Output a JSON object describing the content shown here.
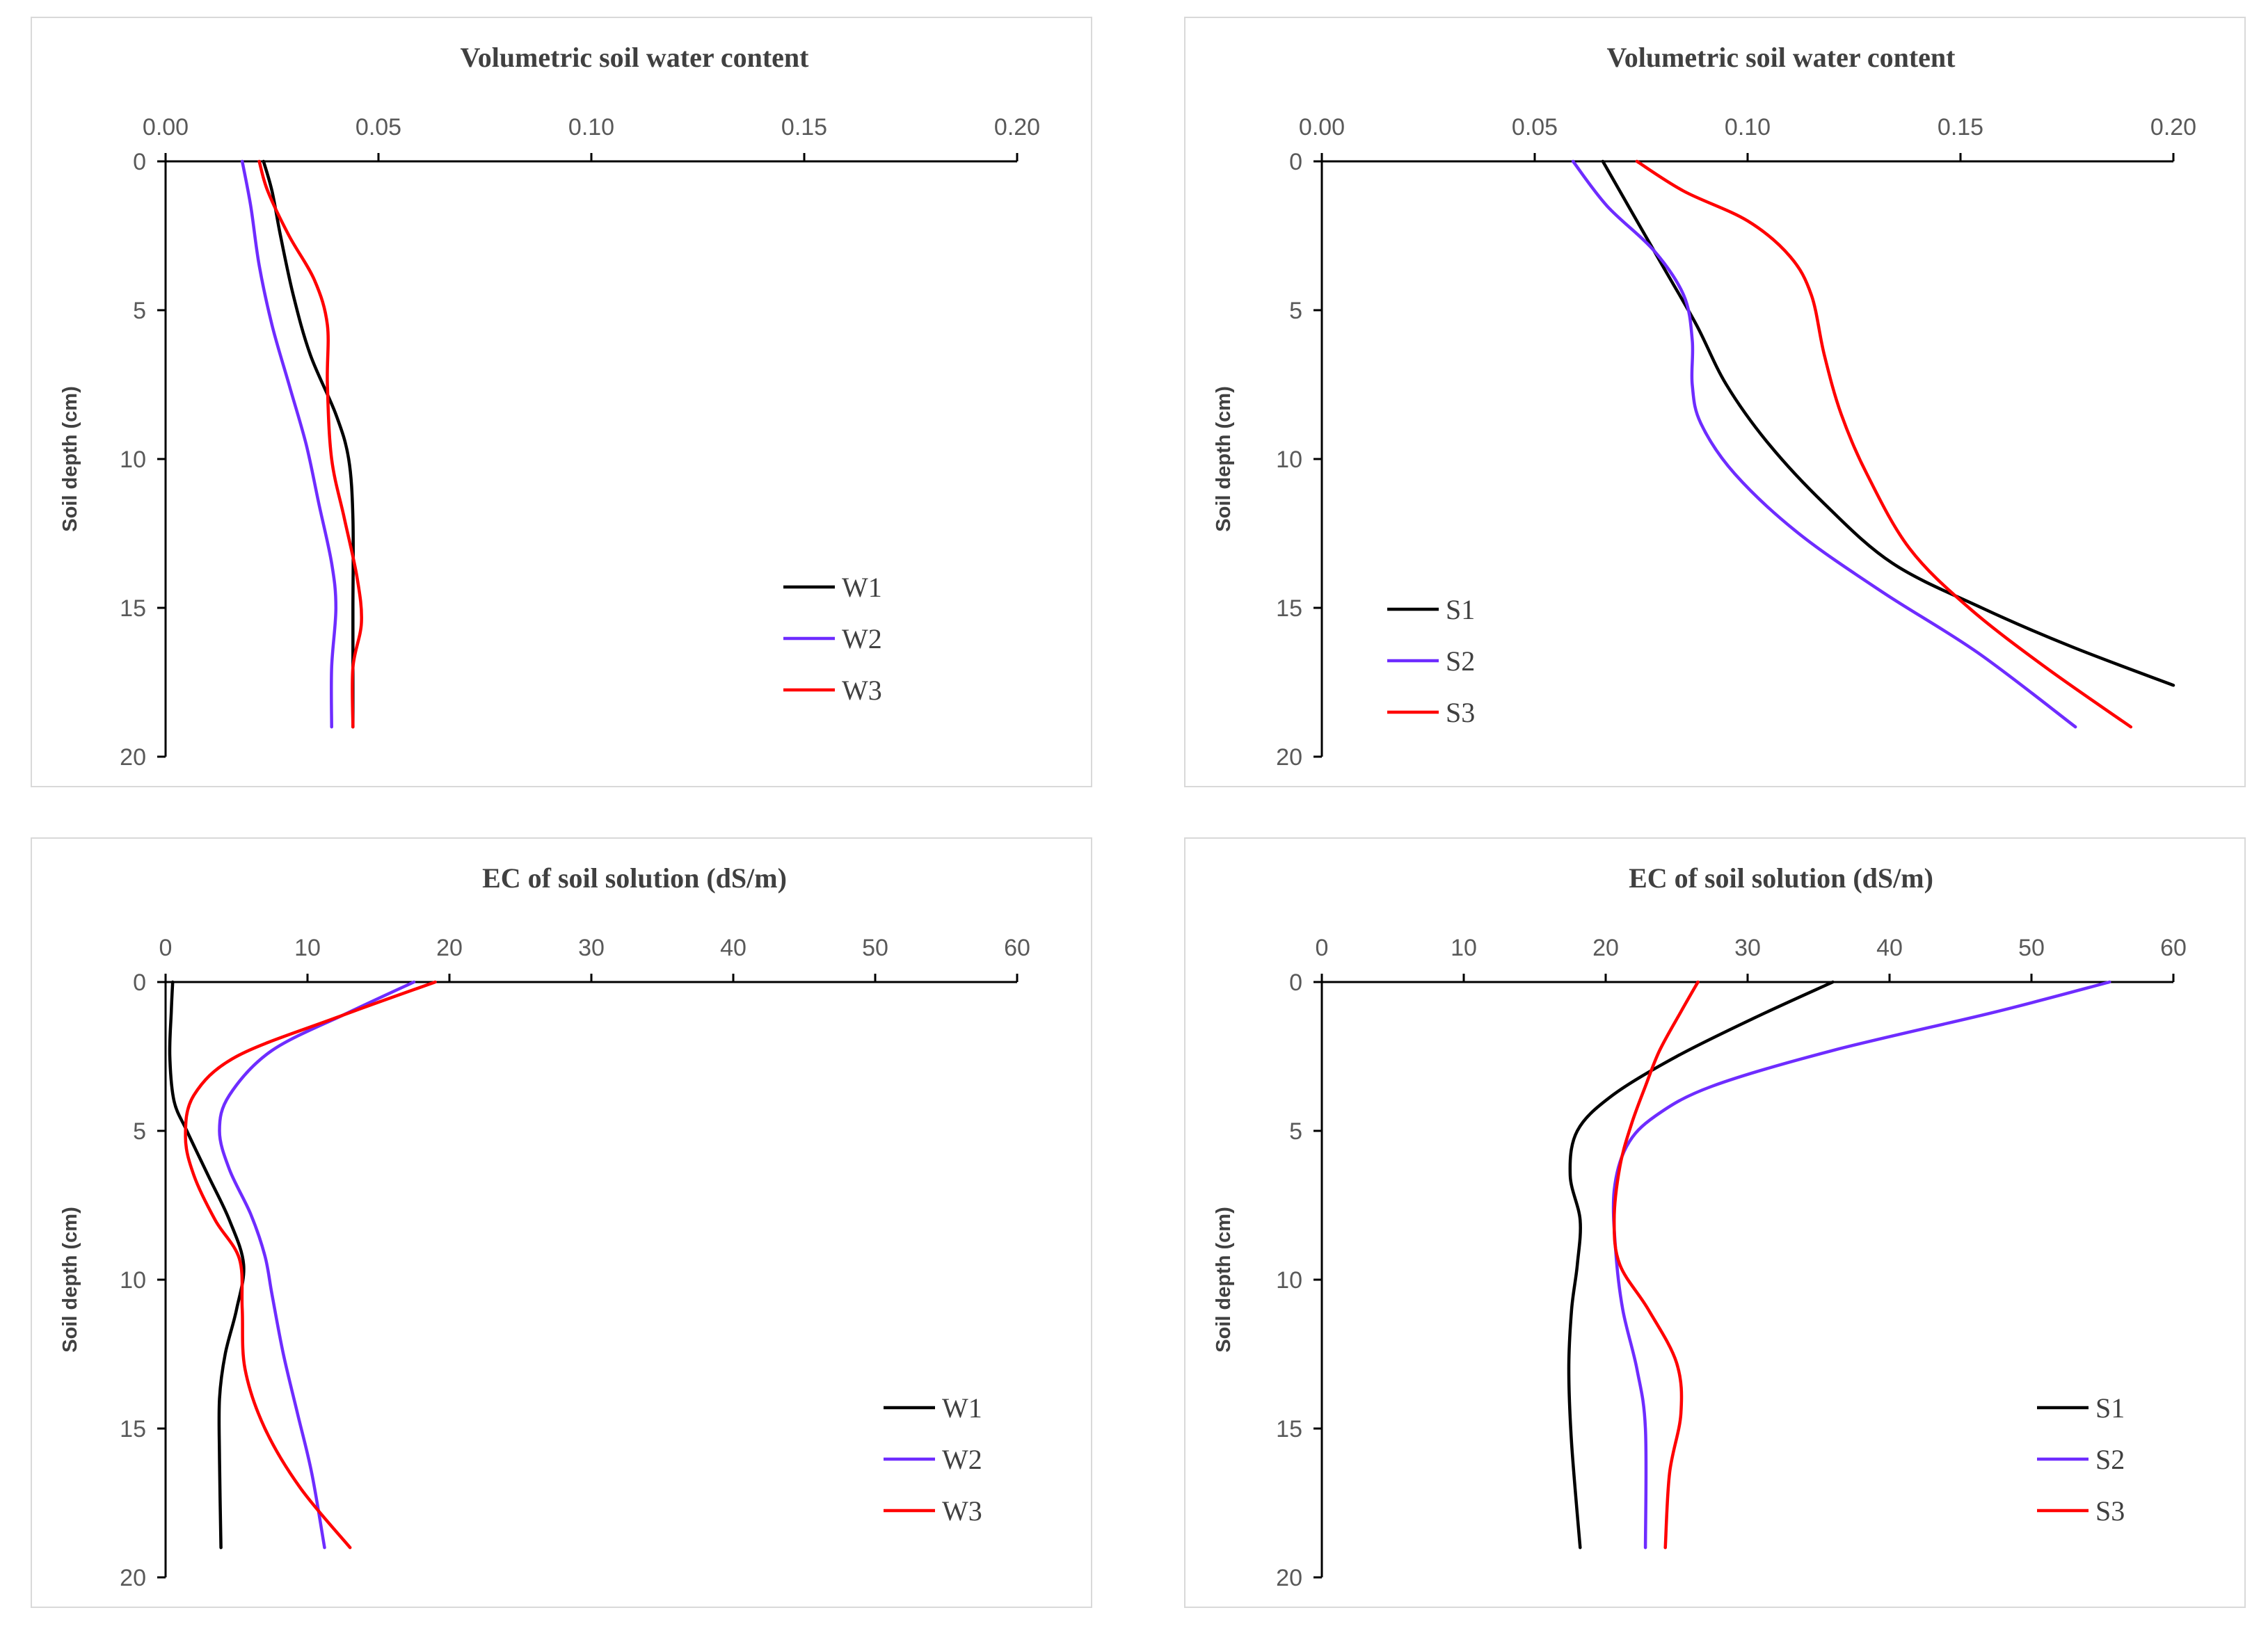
{
  "chart_data": [
    {
      "type": "line",
      "title": "Volumetric soil water content",
      "xlabel": "",
      "ylabel": "Soil depth (cm)",
      "xlim": [
        0,
        0.2
      ],
      "ylim": [
        0,
        20
      ],
      "x_ticks": [
        "0.00",
        "0.05",
        "0.10",
        "0.15",
        "0.20"
      ],
      "y_ticks": [
        "0",
        "5",
        "10",
        "15",
        "20"
      ],
      "legend_position": "bottom-right",
      "series": [
        {
          "name": "W1",
          "color": "#000000",
          "x": [
            0.023,
            0.025,
            0.027,
            0.03,
            0.034,
            0.04,
            0.043,
            0.044,
            0.044,
            0.044,
            0.044
          ],
          "y": [
            0,
            1,
            2.5,
            4.5,
            6.5,
            8.5,
            10,
            12,
            15,
            17,
            19
          ]
        },
        {
          "name": "W2",
          "color": "#6e2cff",
          "x": [
            0.018,
            0.02,
            0.022,
            0.025,
            0.029,
            0.033,
            0.036,
            0.039,
            0.04,
            0.039,
            0.039
          ],
          "y": [
            0,
            1.5,
            3.5,
            5.5,
            7.5,
            9.5,
            11.5,
            13.5,
            15,
            17,
            19
          ]
        },
        {
          "name": "W3",
          "color": "#ff0000",
          "x": [
            0.022,
            0.024,
            0.029,
            0.035,
            0.038,
            0.038,
            0.039,
            0.042,
            0.045,
            0.046,
            0.044,
            0.044
          ],
          "y": [
            0,
            1,
            2.5,
            4,
            5.5,
            7.5,
            10,
            12,
            14,
            15.5,
            17,
            19
          ]
        }
      ]
    },
    {
      "type": "line",
      "title": "Volumetric soil water content",
      "xlabel": "",
      "ylabel": "Soil depth (cm)",
      "xlim": [
        0,
        0.2
      ],
      "ylim": [
        0,
        20
      ],
      "x_ticks": [
        "0.00",
        "0.05",
        "0.10",
        "0.15",
        "0.20"
      ],
      "y_ticks": [
        "0",
        "5",
        "10",
        "15",
        "20"
      ],
      "legend_position": "bottom-left",
      "series": [
        {
          "name": "S1",
          "color": "#000000",
          "x": [
            0.066,
            0.072,
            0.08,
            0.088,
            0.095,
            0.105,
            0.118,
            0.134,
            0.155,
            0.176,
            0.2
          ],
          "y": [
            0,
            1.5,
            3.5,
            5.5,
            7.5,
            9.5,
            11.5,
            13.5,
            15,
            16.3,
            17.6
          ]
        },
        {
          "name": "S2",
          "color": "#6e2cff",
          "x": [
            0.059,
            0.067,
            0.078,
            0.085,
            0.087,
            0.087,
            0.089,
            0.097,
            0.112,
            0.132,
            0.154,
            0.177
          ],
          "y": [
            0,
            1.5,
            3,
            4.5,
            6,
            7.5,
            8.8,
            10.5,
            12.5,
            14.5,
            16.5,
            19
          ]
        },
        {
          "name": "S3",
          "color": "#ff0000",
          "x": [
            0.074,
            0.085,
            0.1,
            0.11,
            0.115,
            0.118,
            0.122,
            0.128,
            0.138,
            0.152,
            0.17,
            0.19
          ],
          "y": [
            0,
            1,
            2,
            3.2,
            4.5,
            6.5,
            8.5,
            10.5,
            13,
            15,
            17,
            19
          ]
        }
      ]
    },
    {
      "type": "line",
      "title": "EC of soil solution (dS/m)",
      "xlabel": "",
      "ylabel": "Soil depth (cm)",
      "xlim": [
        0,
        60
      ],
      "ylim": [
        0,
        20
      ],
      "x_ticks": [
        "0",
        "10",
        "20",
        "30",
        "40",
        "50",
        "60"
      ],
      "y_ticks": [
        "0",
        "5",
        "10",
        "15",
        "20"
      ],
      "legend_position": "bottom-right",
      "series": [
        {
          "name": "W1",
          "color": "#000000",
          "x": [
            0.5,
            0.4,
            0.3,
            0.6,
            1.5,
            3.0,
            4.5,
            5.5,
            5.0,
            4.2,
            3.8,
            3.8,
            3.9
          ],
          "y": [
            0,
            1,
            2.5,
            4,
            5,
            6.5,
            8,
            9.5,
            11,
            12.5,
            14,
            16,
            19
          ]
        },
        {
          "name": "W2",
          "color": "#6e2cff",
          "x": [
            17.5,
            13.0,
            7.5,
            4.5,
            3.8,
            4.5,
            6.0,
            7.0,
            7.5,
            8.3,
            9.3,
            10.3,
            11.2
          ],
          "y": [
            0,
            1,
            2.3,
            3.8,
            5,
            6.3,
            7.8,
            9.2,
            10.5,
            12.5,
            14.5,
            16.5,
            19
          ]
        },
        {
          "name": "W3",
          "color": "#ff0000",
          "x": [
            19.0,
            12.0,
            5.0,
            2.0,
            1.4,
            2.0,
            3.5,
            5.2,
            5.4,
            5.6,
            7.0,
            9.5,
            13.0
          ],
          "y": [
            0,
            1.2,
            2.5,
            3.8,
            5.2,
            6.5,
            8,
            9.3,
            11,
            13,
            15,
            17,
            19
          ]
        }
      ]
    },
    {
      "type": "line",
      "title": "EC of soil solution (dS/m)",
      "xlabel": "",
      "ylabel": "Soil depth (cm)",
      "xlim": [
        0,
        60
      ],
      "ylim": [
        0,
        20
      ],
      "x_ticks": [
        "0",
        "10",
        "20",
        "30",
        "40",
        "50",
        "60"
      ],
      "y_ticks": [
        "0",
        "5",
        "10",
        "15",
        "20"
      ],
      "legend_position": "bottom-right",
      "series": [
        {
          "name": "S1",
          "color": "#000000",
          "x": [
            36.0,
            30.5,
            25.0,
            20.5,
            18.0,
            17.5,
            18.2,
            18.0,
            17.6,
            17.4,
            17.6,
            18.2
          ],
          "y": [
            0,
            1.2,
            2.5,
            3.8,
            5,
            6.5,
            8,
            9.5,
            11,
            13,
            15.5,
            19
          ]
        },
        {
          "name": "S2",
          "color": "#6e2cff",
          "x": [
            55.5,
            47.5,
            36.0,
            27.5,
            23.5,
            21.5,
            20.6,
            20.7,
            21.2,
            22.2,
            22.8,
            22.8
          ],
          "y": [
            0,
            1,
            2.3,
            3.5,
            4.5,
            5.5,
            7,
            9,
            11,
            13,
            15,
            19
          ]
        },
        {
          "name": "S3",
          "color": "#ff0000",
          "x": [
            26.5,
            25.3,
            23.8,
            22.8,
            21.8,
            21.0,
            20.6,
            21.0,
            23.0,
            25.0,
            25.3,
            24.5,
            24.2
          ],
          "y": [
            0,
            1,
            2.3,
            3.5,
            4.8,
            6.2,
            8,
            9.5,
            11,
            12.8,
            14.5,
            16.5,
            19
          ]
        }
      ]
    }
  ]
}
